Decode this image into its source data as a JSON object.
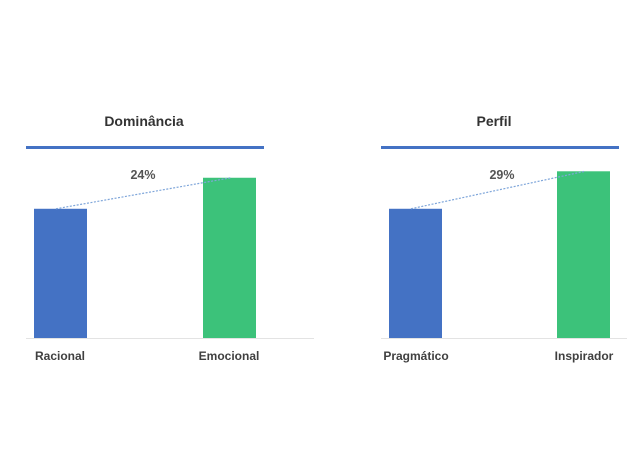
{
  "chart_data": [
    {
      "type": "bar",
      "title": "Dominância",
      "categories": [
        "Racional",
        "Emocional"
      ],
      "values": [
        100,
        124
      ],
      "annotation": "24%",
      "colors": [
        "#4472C4",
        "#3CC27A"
      ],
      "ylim": [
        0,
        130
      ],
      "grid": false
    },
    {
      "type": "bar",
      "title": "Perfil",
      "categories": [
        "Pragmático",
        "Inspirador"
      ],
      "values": [
        100,
        129
      ],
      "annotation": "29%",
      "colors": [
        "#4472C4",
        "#3CC27A"
      ],
      "ylim": [
        0,
        130
      ],
      "grid": false
    }
  ],
  "colors": {
    "rule": "#4472C4",
    "connector": "#7FA6DA"
  }
}
